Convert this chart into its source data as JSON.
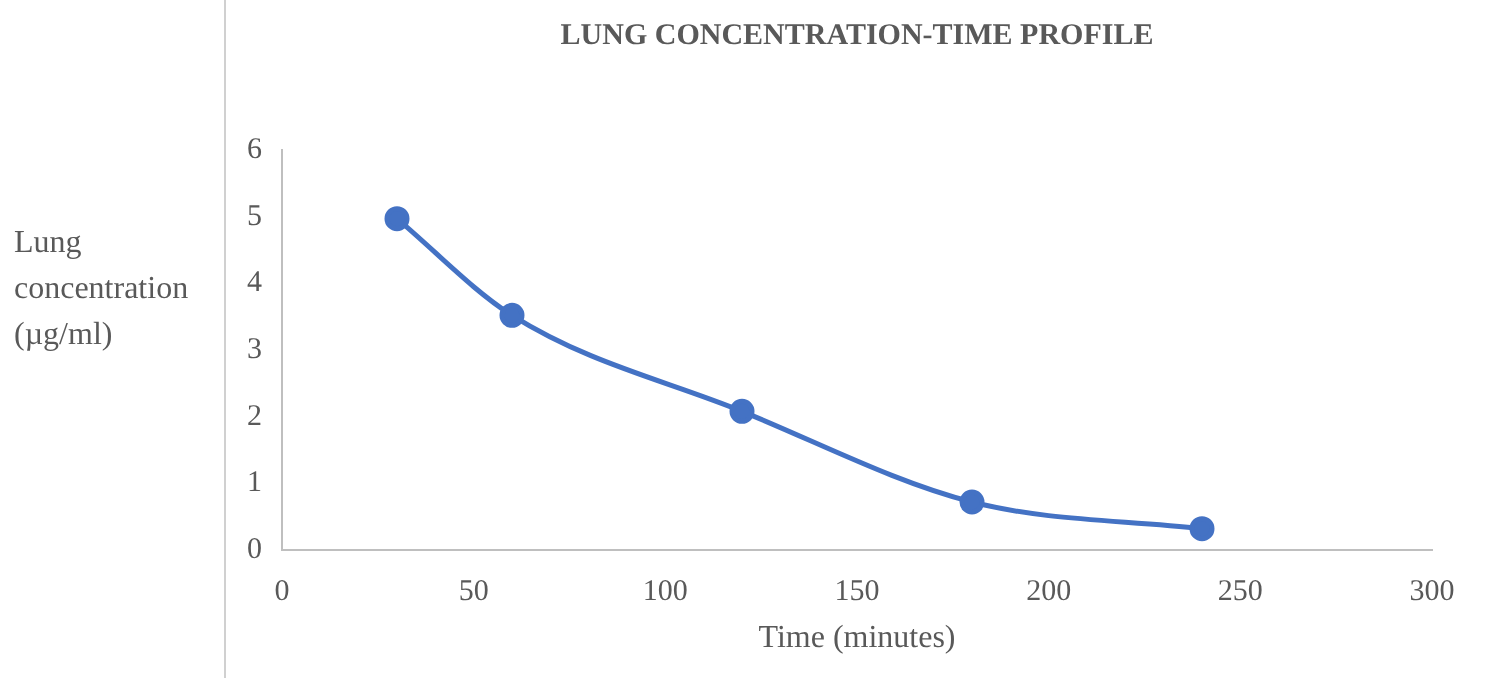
{
  "chart_data": {
    "type": "line",
    "title": "LUNG CONCENTRATION-TIME PROFILE",
    "xlabel": "Time (minutes)",
    "ylabel": "Lung concentration (µg/ml)",
    "series": [
      {
        "x": [
          30,
          60,
          120,
          180,
          240
        ],
        "values": [
          4.97,
          3.52,
          2.08,
          0.72,
          0.32
        ],
        "color": "#4472c4"
      }
    ],
    "xlim": [
      0,
      300
    ],
    "xticks": [
      0,
      50,
      100,
      150,
      200,
      250,
      300
    ],
    "ylim": [
      0,
      6
    ],
    "yticks": [
      0,
      1,
      2,
      3,
      4,
      5,
      6
    ],
    "grid": false,
    "legend": false,
    "marker": "circle",
    "line_style": "solid"
  }
}
